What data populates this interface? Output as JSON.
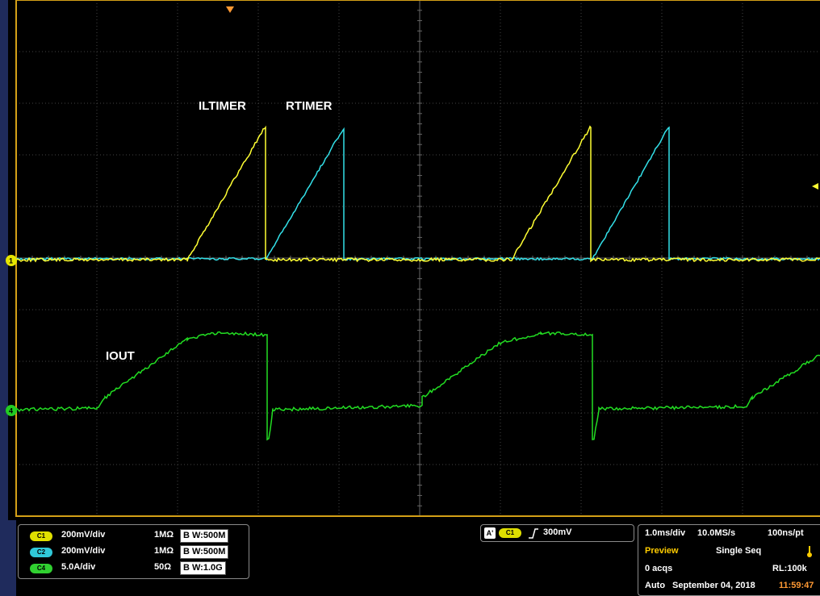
{
  "colors": {
    "ch1": "#ffff33",
    "ch2": "#33e0e8",
    "ch4": "#22dd22",
    "frame": "#d4a017",
    "grid": "#5a5a5a",
    "trigger_time": "#ff9933"
  },
  "annotations": {
    "iltimer": "ILTIMER",
    "rtimer": "RTIMER",
    "iout": "IOUT"
  },
  "markers": {
    "ch1": "1",
    "ch4": "4"
  },
  "channels": [
    {
      "badge": "C1",
      "scale": "200mV/div",
      "impedance": "1MΩ",
      "bw": "B W:500M",
      "color": "#e0e000"
    },
    {
      "badge": "C2",
      "scale": "200mV/div",
      "impedance": "1MΩ",
      "bw": "B W:500M",
      "color": "#30c8d8"
    },
    {
      "badge": "C4",
      "scale": "5.0A/div",
      "impedance": "50Ω",
      "bw": "B W:1.0G",
      "color": "#30d030"
    }
  ],
  "trigger": {
    "mode_badge": "A'",
    "source_badge": "C1",
    "slope": "rising",
    "level": "300mV"
  },
  "horizontal": {
    "time_scale": "1.0ms/div",
    "sample_rate": "10.0MS/s",
    "resolution": "100ns/pt",
    "state": "Preview",
    "acq_mode": "Single Seq",
    "acqs": "0 acqs",
    "record_length": "RL:100k",
    "trigger_mode": "Auto",
    "date": "September 04, 2018",
    "time": "11:59:47"
  }
}
